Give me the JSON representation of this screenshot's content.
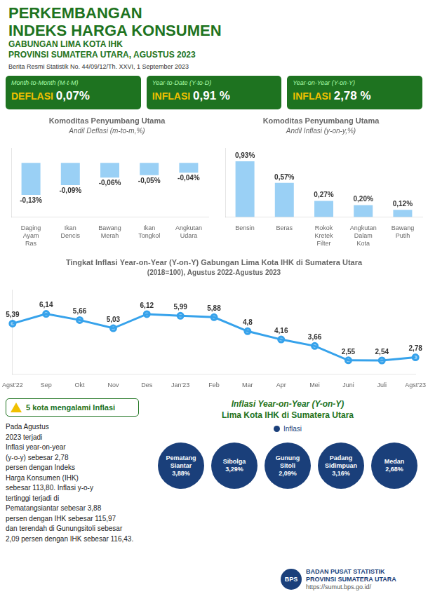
{
  "chart_data": [
    {
      "type": "bar",
      "title": "Komoditas Penyumbang Utama",
      "subtitle": "Andil Deflasi (m-to-m,%)",
      "categories": [
        "Daging\nAyam\nRas",
        "Ikan\nDencis",
        "Bawang\nMerah",
        "Ikan\nTongkol",
        "Angkutan\nUdara"
      ],
      "values": [
        -0.13,
        -0.09,
        -0.06,
        -0.05,
        -0.04
      ],
      "value_labels": [
        "-0,13%",
        "-0,09%",
        "-0,06%",
        "-0,05%",
        "-0,04%"
      ],
      "ylim": [
        -0.22,
        0.06
      ],
      "data_labels": true,
      "tick_labels": "x",
      "grid": false,
      "annotations": [
        "PERKEMBANGAN",
        "INDEKS HARGA KONSUMEN",
        "GABUNGAN LIMA KOTA IHK",
        "PROVINSI SUMATERA UTARA, AGUSTUS 2023",
        "Berita Resmi Statistik No. 44/09/12/Th. XXVI, 1 September 2023",
        "Month-to-Month (M-t-M)",
        "DEFLASI 0,07%",
        "Year-to-Date (Y-to-D)",
        "INFLASI 0,91 %",
        "Year-on-Year (Y-on-Y)",
        "INFLASI 2,78 %"
      ]
    },
    {
      "type": "bar",
      "title": "Komoditas Penyumbang Utama",
      "subtitle": "Andil Inflasi (y-on-y,%)",
      "categories": [
        "Bensin",
        "Beras",
        "Rokok\nKretek\nFilter",
        "Angkutan\nDalam\nKota",
        "Bawang\nPutih"
      ],
      "values": [
        0.93,
        0.57,
        0.27,
        0.2,
        0.12
      ],
      "value_labels": [
        "0,93%",
        "0,57%",
        "0,27%",
        "0,20%",
        "0,12%"
      ],
      "ylim": [
        0,
        1.15
      ],
      "data_labels": true,
      "tick_labels": "x",
      "grid": false
    },
    {
      "type": "line",
      "title": "Tingkat Inflasi Year-on-Year (Y-on-Y) Gabungan Lima Kota IHK di Sumatera Utara",
      "subtitle": "(2018=100), Agustus 2022-Agustus 2023",
      "categories": [
        "Agst'22",
        "Sep",
        "Okt",
        "Nov",
        "Des",
        "Jan'23",
        "Feb",
        "Mar",
        "Apr",
        "Mei",
        "Juni",
        "Juli",
        "Agst'23"
      ],
      "values": [
        5.39,
        6.14,
        5.66,
        5.03,
        6.12,
        5.99,
        5.88,
        4.8,
        4.16,
        3.66,
        2.55,
        2.54,
        2.78
      ],
      "value_labels": [
        "5,39",
        "6,14",
        "5,66",
        "5,03",
        "6,12",
        "5,99",
        "5,88",
        "4,8",
        "4,16",
        "3,66",
        "2,55",
        "2,54",
        "2,78"
      ],
      "ylim": [
        1.5,
        8.0
      ],
      "data_labels": true,
      "tick_labels": "x",
      "grid": false,
      "marker": "circle",
      "annotations": [
        "5 kota mengalami Inflasi",
        "Pada Agustus\n2023 terjadi\nInflasi year-on-year\n(y-o-y) sebesar 2,78\npersen dengan Indeks\nHarga Konsumen (IHK)\nsebesar 113,80. Inflasi y-o-y\ntertinggi terjadi di\nPematangsiantar sebesar 3,88\npersen dengan IHK sebesar 115,97\ndan terendah di Gunungsitoli sebesar\n2,09 persen dengan IHK sebesar 116,43.",
        "Inflasi Year-on-Year (Y-on-Y)",
        "Lima Kota IHK di Sumatera Utara",
        "Inflasi",
        "Pematang\nSiantar\n3,88%",
        "Sibolga\n3,29%",
        "Gunung\nSitoli\n2,09%",
        "Padang\nSidimpuan\n3,16%",
        "Medan\n2,68%",
        "BPS",
        "BADAN PUSAT STATISTIK",
        "PROVINSI SUMATERA UTARA",
        "https://sumut.bps.go.id/"
      ]
    }
  ]
}
